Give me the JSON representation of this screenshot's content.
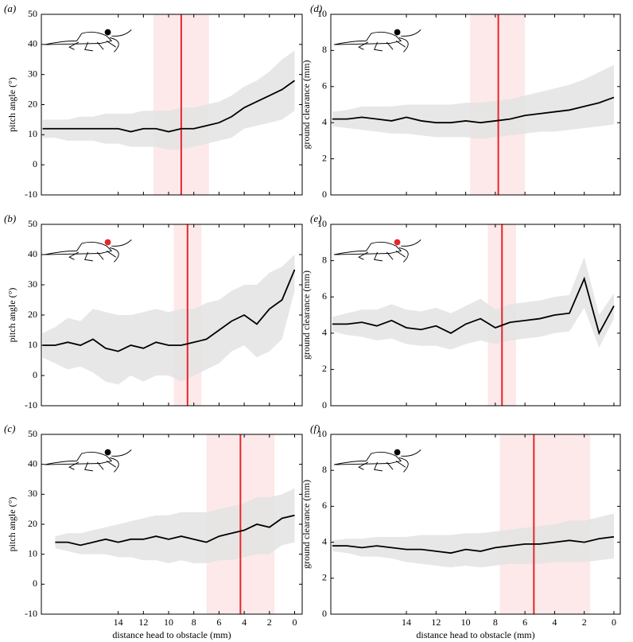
{
  "chart_data": [
    {
      "type": "line",
      "panel": "(a)",
      "ylabel": "pitch angle (°)",
      "color": "#000000",
      "band_color": "#e3e3e3",
      "marker_color": "#e8262c",
      "marker_band_color": "#fde9e9",
      "icon_head_color": "#000000",
      "xlim": [
        20.1,
        -0.6
      ],
      "xticks": [
        14,
        12,
        10,
        8,
        6,
        4,
        2,
        0
      ],
      "xtick_labels": false,
      "ylim": [
        -10,
        50
      ],
      "yticks": [
        -10,
        0,
        10,
        20,
        30,
        40,
        50
      ],
      "x": [
        20,
        19,
        18,
        17,
        16,
        15,
        14,
        13,
        12,
        11,
        10,
        9,
        8,
        7,
        6,
        5,
        4,
        3,
        2,
        1,
        0
      ],
      "values": [
        12,
        12,
        12,
        12,
        12,
        12,
        12,
        11,
        12,
        12,
        11,
        12,
        12,
        13,
        14,
        16,
        19,
        21,
        23,
        25,
        28
      ],
      "band_low": [
        9,
        9,
        8,
        8,
        8,
        7,
        7,
        6,
        6,
        6,
        5,
        5,
        6,
        7,
        8,
        9,
        12,
        13,
        14,
        15,
        18
      ],
      "band_high": [
        15,
        15,
        15,
        16,
        16,
        17,
        17,
        17,
        18,
        18,
        18,
        19,
        19,
        20,
        21,
        23,
        26,
        28,
        31,
        35,
        38
      ],
      "marker_x": 9.0,
      "marker_band": [
        11.2,
        6.8
      ]
    },
    {
      "type": "line",
      "panel": "(b)",
      "ylabel": "pitch angle (°)",
      "color": "#000000",
      "band_color": "#e3e3e3",
      "marker_color": "#e8262c",
      "marker_band_color": "#fde9e9",
      "icon_head_color": "#e8262c",
      "xlim": [
        20.1,
        -0.6
      ],
      "xticks": [
        14,
        12,
        10,
        8,
        6,
        4,
        2,
        0
      ],
      "xtick_labels": false,
      "ylim": [
        -10,
        50
      ],
      "yticks": [
        -10,
        0,
        10,
        20,
        30,
        40,
        50
      ],
      "x": [
        20,
        19,
        18,
        17,
        16,
        15,
        14,
        13,
        12,
        11,
        10,
        9,
        8,
        7,
        6,
        5,
        4,
        3,
        2,
        1,
        0
      ],
      "values": [
        10,
        10,
        11,
        10,
        12,
        9,
        8,
        10,
        9,
        11,
        10,
        10,
        11,
        12,
        15,
        18,
        20,
        17,
        22,
        25,
        35
      ],
      "band_low": [
        6,
        4,
        2,
        3,
        1,
        -2,
        -3,
        0,
        -2,
        0,
        0,
        -2,
        0,
        2,
        4,
        8,
        10,
        6,
        8,
        12,
        28
      ],
      "band_high": [
        14,
        16,
        19,
        18,
        22,
        21,
        20,
        20,
        21,
        22,
        21,
        22,
        22,
        24,
        25,
        28,
        30,
        30,
        34,
        36,
        40
      ],
      "marker_x": 8.5,
      "marker_band": [
        9.6,
        7.4
      ]
    },
    {
      "type": "line",
      "panel": "(c)",
      "ylabel": "pitch angle (°)",
      "xlabel": "distance head to obstacle (mm)",
      "color": "#000000",
      "band_color": "#e3e3e3",
      "marker_color": "#e8262c",
      "marker_band_color": "#fde9e9",
      "icon_head_color": "#000000",
      "xlim": [
        20.1,
        -0.6
      ],
      "xticks": [
        14,
        12,
        10,
        8,
        6,
        4,
        2,
        0
      ],
      "xtick_labels": true,
      "ylim": [
        -10,
        50
      ],
      "yticks": [
        -10,
        0,
        10,
        20,
        30,
        40,
        50
      ],
      "x": [
        19,
        18,
        17,
        16,
        15,
        14,
        13,
        12,
        11,
        10,
        9,
        8,
        7,
        6,
        5,
        4,
        3,
        2,
        1,
        0
      ],
      "values": [
        14,
        14,
        13,
        14,
        15,
        14,
        15,
        15,
        16,
        15,
        16,
        15,
        14,
        16,
        17,
        18,
        20,
        19,
        22,
        23
      ],
      "band_low": [
        12,
        11,
        10,
        10,
        10,
        9,
        9,
        8,
        8,
        7,
        8,
        7,
        7,
        8,
        8,
        9,
        10,
        10,
        13,
        14
      ],
      "band_high": [
        16,
        17,
        17,
        18,
        19,
        20,
        21,
        22,
        23,
        23,
        24,
        24,
        24,
        25,
        26,
        27,
        29,
        29,
        30,
        32
      ],
      "marker_x": 4.3,
      "marker_band": [
        7.0,
        1.6
      ]
    },
    {
      "type": "line",
      "panel": "(d)",
      "ylabel": "ground clearance (mm)",
      "color": "#000000",
      "band_color": "#e3e3e3",
      "marker_color": "#e8262c",
      "marker_band_color": "#fde9e9",
      "icon_head_color": "#000000",
      "xlim": [
        19.1,
        -0.43
      ],
      "xticks": [
        14,
        12,
        10,
        8,
        6,
        4,
        2,
        0
      ],
      "xtick_labels": false,
      "ylim": [
        0,
        10
      ],
      "yticks": [
        0,
        2,
        4,
        6,
        8,
        10
      ],
      "x": [
        19,
        18,
        17,
        16,
        15,
        14,
        13,
        12,
        11,
        10,
        9,
        8,
        7,
        6,
        5,
        4,
        3,
        2,
        1,
        0
      ],
      "values": [
        4.2,
        4.2,
        4.3,
        4.2,
        4.1,
        4.3,
        4.1,
        4.0,
        4.0,
        4.1,
        4.0,
        4.1,
        4.2,
        4.4,
        4.5,
        4.6,
        4.7,
        4.9,
        5.1,
        5.4
      ],
      "band_low": [
        3.8,
        3.7,
        3.6,
        3.5,
        3.4,
        3.4,
        3.3,
        3.2,
        3.2,
        3.2,
        3.1,
        3.2,
        3.3,
        3.4,
        3.5,
        3.5,
        3.6,
        3.7,
        3.8,
        3.9
      ],
      "band_high": [
        4.6,
        4.7,
        4.9,
        4.9,
        4.9,
        5.0,
        5.0,
        5.0,
        5.0,
        5.1,
        5.1,
        5.2,
        5.3,
        5.5,
        5.7,
        5.9,
        6.1,
        6.4,
        6.8,
        7.2
      ],
      "marker_x": 7.8,
      "marker_band": [
        9.7,
        6.0
      ]
    },
    {
      "type": "line",
      "panel": "(e)",
      "ylabel": "ground clearance (mm)",
      "color": "#000000",
      "band_color": "#e3e3e3",
      "marker_color": "#e8262c",
      "marker_band_color": "#fde9e9",
      "icon_head_color": "#e8262c",
      "xlim": [
        19.1,
        -0.43
      ],
      "xticks": [
        14,
        12,
        10,
        8,
        6,
        4,
        2,
        0
      ],
      "xtick_labels": false,
      "ylim": [
        0,
        10
      ],
      "yticks": [
        0,
        2,
        4,
        6,
        8,
        10
      ],
      "x": [
        19,
        18,
        17,
        16,
        15,
        14,
        13,
        12,
        11,
        10,
        9,
        8,
        7,
        6,
        5,
        4,
        3,
        2,
        1,
        0
      ],
      "values": [
        4.5,
        4.5,
        4.6,
        4.4,
        4.7,
        4.3,
        4.2,
        4.4,
        4.0,
        4.5,
        4.8,
        4.3,
        4.6,
        4.7,
        4.8,
        5.0,
        5.1,
        7.0,
        4.0,
        5.5
      ],
      "band_low": [
        4.1,
        3.9,
        3.8,
        3.6,
        3.7,
        3.4,
        3.3,
        3.3,
        3.1,
        3.4,
        3.6,
        3.4,
        3.6,
        3.7,
        3.8,
        4.0,
        4.1,
        5.4,
        3.2,
        4.8
      ],
      "band_high": [
        4.9,
        5.1,
        5.3,
        5.3,
        5.6,
        5.3,
        5.2,
        5.4,
        5.1,
        5.5,
        5.9,
        5.3,
        5.6,
        5.7,
        5.8,
        6.0,
        6.1,
        8.2,
        5.0,
        6.2
      ],
      "marker_x": 7.55,
      "marker_band": [
        8.5,
        6.6
      ]
    },
    {
      "type": "line",
      "panel": "(f)",
      "ylabel": "ground clearance (mm)",
      "xlabel": "distance head to obstacle (mm)",
      "color": "#000000",
      "band_color": "#e3e3e3",
      "marker_color": "#e8262c",
      "marker_band_color": "#fde9e9",
      "icon_head_color": "#000000",
      "xlim": [
        19.1,
        -0.43
      ],
      "xticks": [
        14,
        12,
        10,
        8,
        6,
        4,
        2,
        0
      ],
      "xtick_labels": true,
      "ylim": [
        0,
        10
      ],
      "yticks": [
        0,
        2,
        4,
        6,
        8,
        10
      ],
      "x": [
        19,
        18,
        17,
        16,
        15,
        14,
        13,
        12,
        11,
        10,
        9,
        8,
        7,
        6,
        5,
        4,
        3,
        2,
        1,
        0
      ],
      "values": [
        3.8,
        3.8,
        3.7,
        3.8,
        3.7,
        3.6,
        3.6,
        3.5,
        3.4,
        3.6,
        3.5,
        3.7,
        3.8,
        3.9,
        3.9,
        4.0,
        4.1,
        4.0,
        4.2,
        4.3
      ],
      "band_low": [
        3.5,
        3.4,
        3.2,
        3.2,
        3.1,
        2.9,
        2.8,
        2.7,
        2.6,
        2.7,
        2.6,
        2.7,
        2.8,
        2.8,
        2.8,
        2.9,
        2.9,
        2.9,
        3.0,
        3.1
      ],
      "band_high": [
        4.1,
        4.2,
        4.2,
        4.3,
        4.3,
        4.3,
        4.4,
        4.4,
        4.4,
        4.5,
        4.5,
        4.6,
        4.7,
        4.8,
        4.9,
        5.0,
        5.2,
        5.2,
        5.4,
        5.6
      ],
      "marker_x": 5.4,
      "marker_band": [
        7.7,
        1.6
      ]
    }
  ]
}
